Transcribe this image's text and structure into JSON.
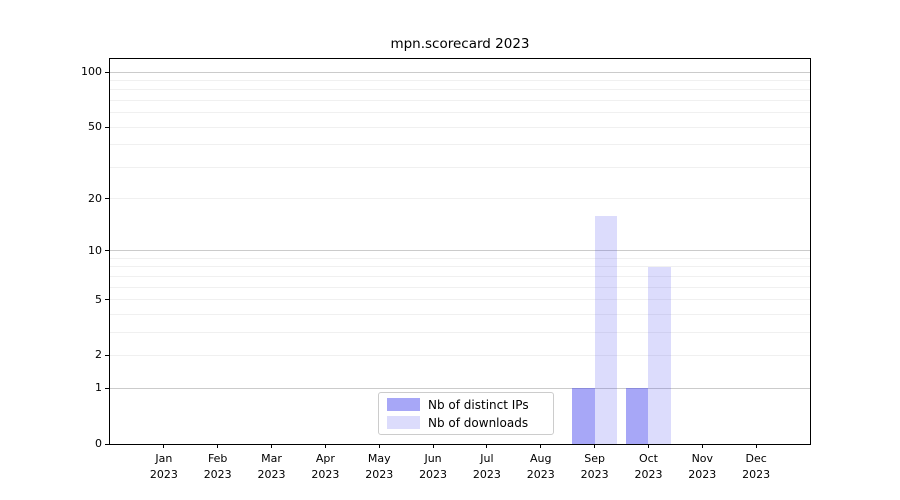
{
  "title": "mpn.scorecard 2023",
  "chart_data": {
    "type": "bar",
    "title": "mpn.scorecard 2023",
    "x_year": "2023",
    "categories": [
      "Jan",
      "Feb",
      "Mar",
      "Apr",
      "May",
      "Jun",
      "Jul",
      "Aug",
      "Sep",
      "Oct",
      "Nov",
      "Dec"
    ],
    "series": [
      {
        "name": "Nb of distinct IPs",
        "color": "rgba(68,68,238,0.47)",
        "values": [
          0,
          0,
          0,
          0,
          0,
          0,
          0,
          0,
          1,
          1,
          0,
          0
        ]
      },
      {
        "name": "Nb of downloads",
        "color": "rgba(68,68,238,0.19)",
        "values": [
          0,
          0,
          0,
          0,
          0,
          0,
          0,
          0,
          16,
          8,
          0,
          0
        ]
      }
    ],
    "y_scale": "log1p",
    "ylim": [
      0,
      118
    ],
    "y_ticks": [
      0,
      1,
      2,
      5,
      10,
      20,
      50,
      100
    ],
    "grid_major": [
      1,
      10,
      100
    ],
    "grid_minor": [
      2,
      3,
      4,
      5,
      6,
      7,
      8,
      9,
      20,
      30,
      40,
      50,
      60,
      70,
      80,
      90
    ],
    "legend_position": "lower center",
    "colors": {
      "grid_major": "#cbcbcb",
      "grid_minor": "#f0f0f0",
      "spine": "#000000"
    }
  }
}
